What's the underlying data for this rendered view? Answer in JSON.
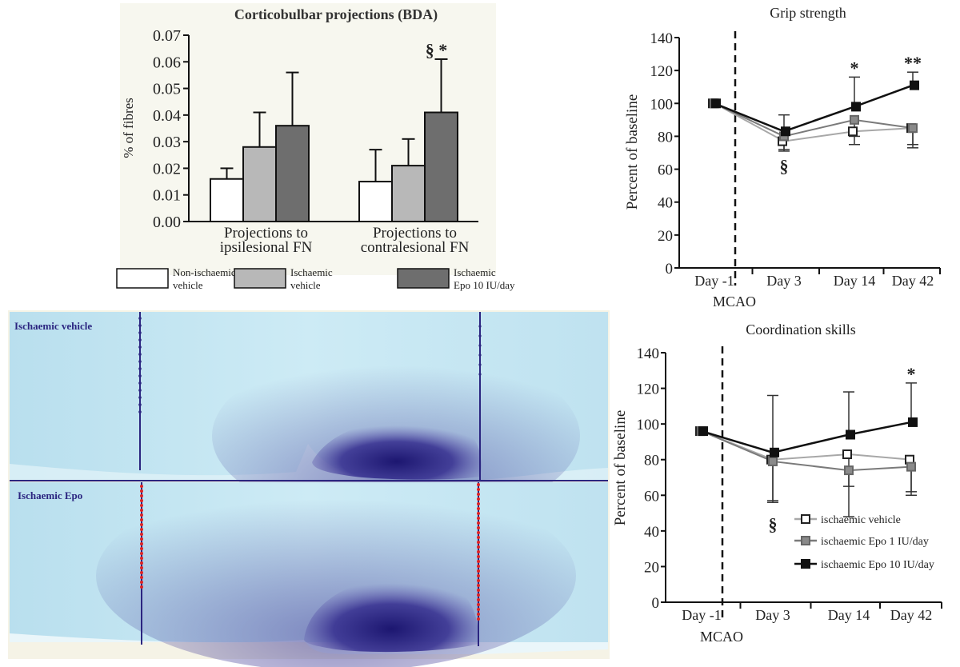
{
  "chart_data": [
    {
      "type": "bar",
      "title": "Corticobulbar projections (BDA)",
      "ylabel": "% of fibres",
      "ylim": [
        0,
        0.07
      ],
      "yticks": [
        "0.00",
        "0.01",
        "0.02",
        "0.03",
        "0.04",
        "0.05",
        "0.06",
        "0.07"
      ],
      "groups": [
        {
          "label1": "Projections to",
          "label2": "ipsilesional FN",
          "annotation": ""
        },
        {
          "label1": "Projections to",
          "label2": "contralesional FN",
          "annotation": "§ *"
        }
      ],
      "series": [
        {
          "name": "Non-ischaemic vehicle",
          "legend1": "Non-ischaemic",
          "legend2": "vehicle",
          "color": "#ffffff",
          "values": [
            0.016,
            0.015
          ],
          "errors": [
            0.004,
            0.012
          ]
        },
        {
          "name": "Ischaemic vehicle",
          "legend1": "Ischaemic",
          "legend2": "vehicle",
          "color": "#b8b8b8",
          "values": [
            0.028,
            0.021
          ],
          "errors": [
            0.013,
            0.01
          ]
        },
        {
          "name": "Ischaemic Epo 10 IU/day",
          "legend1": "Ischaemic",
          "legend2": "Epo 10 IU/day",
          "color": "#6e6e6e",
          "values": [
            0.036,
            0.041
          ],
          "errors": [
            0.02,
            0.02
          ]
        }
      ]
    },
    {
      "type": "line",
      "title": "Grip strength",
      "ylabel": "Percent of baseline",
      "ylim": [
        0,
        140
      ],
      "yticks": [
        "0",
        "20",
        "40",
        "60",
        "80",
        "100",
        "120",
        "140"
      ],
      "categories": [
        "Day -1",
        "Day 3",
        "Day 14",
        "Day 42"
      ],
      "event_label": "MCAO",
      "annotations": {
        "Day 3": "§",
        "Day 14": "*",
        "Day 42": "**"
      },
      "series": [
        {
          "name": "ischaemic vehicle",
          "color": "#a8a8a8",
          "marker": "open-square",
          "values": [
            100,
            77,
            83,
            85
          ],
          "errors": [
            0,
            6,
            8,
            10
          ]
        },
        {
          "name": "ischaemic Epo 1 IU/day",
          "color": "#7a7a7a",
          "marker": "gray-square",
          "values": [
            100,
            80,
            90,
            85
          ],
          "errors": [
            0,
            8,
            10,
            12
          ]
        },
        {
          "name": "ischaemic Epo 10 IU/day",
          "color": "#111111",
          "marker": "filled-square",
          "values": [
            100,
            83,
            98,
            111
          ],
          "errors": [
            0,
            10,
            18,
            8
          ]
        }
      ]
    },
    {
      "type": "line",
      "title": "Coordination skills",
      "ylabel": "Percent of baseline",
      "ylim": [
        0,
        140
      ],
      "yticks": [
        "0",
        "20",
        "40",
        "60",
        "80",
        "100",
        "120",
        "140"
      ],
      "categories": [
        "Day -1",
        "Day 3",
        "Day 14",
        "Day 42"
      ],
      "event_label": "MCAO",
      "annotations": {
        "Day 3": "§",
        "Day 42": "*"
      },
      "legend": [
        "ischaemic vehicle",
        "ischaemic Epo 1 IU/day",
        "ischaemic Epo 10 IU/day"
      ],
      "series": [
        {
          "name": "ischaemic vehicle",
          "color": "#a8a8a8",
          "marker": "open-square",
          "values": [
            96,
            80,
            83,
            80
          ],
          "errors": [
            0,
            24,
            18,
            18
          ]
        },
        {
          "name": "ischaemic Epo 1 IU/day",
          "color": "#7a7a7a",
          "marker": "gray-square",
          "values": [
            96,
            79,
            74,
            76
          ],
          "errors": [
            0,
            22,
            26,
            16
          ]
        },
        {
          "name": "ischaemic Epo 10 IU/day",
          "color": "#111111",
          "marker": "filled-square",
          "values": [
            96,
            84,
            94,
            101
          ],
          "errors": [
            0,
            32,
            24,
            22
          ]
        }
      ]
    }
  ],
  "histology": {
    "top_label": "Ischaemic vehicle",
    "bottom_label": "Ischaemic Epo",
    "top_color": "#c3e6f2",
    "bottom_color": "#c4e6f3",
    "stain_color": "#2b2580",
    "marker_color": "#e02424"
  }
}
